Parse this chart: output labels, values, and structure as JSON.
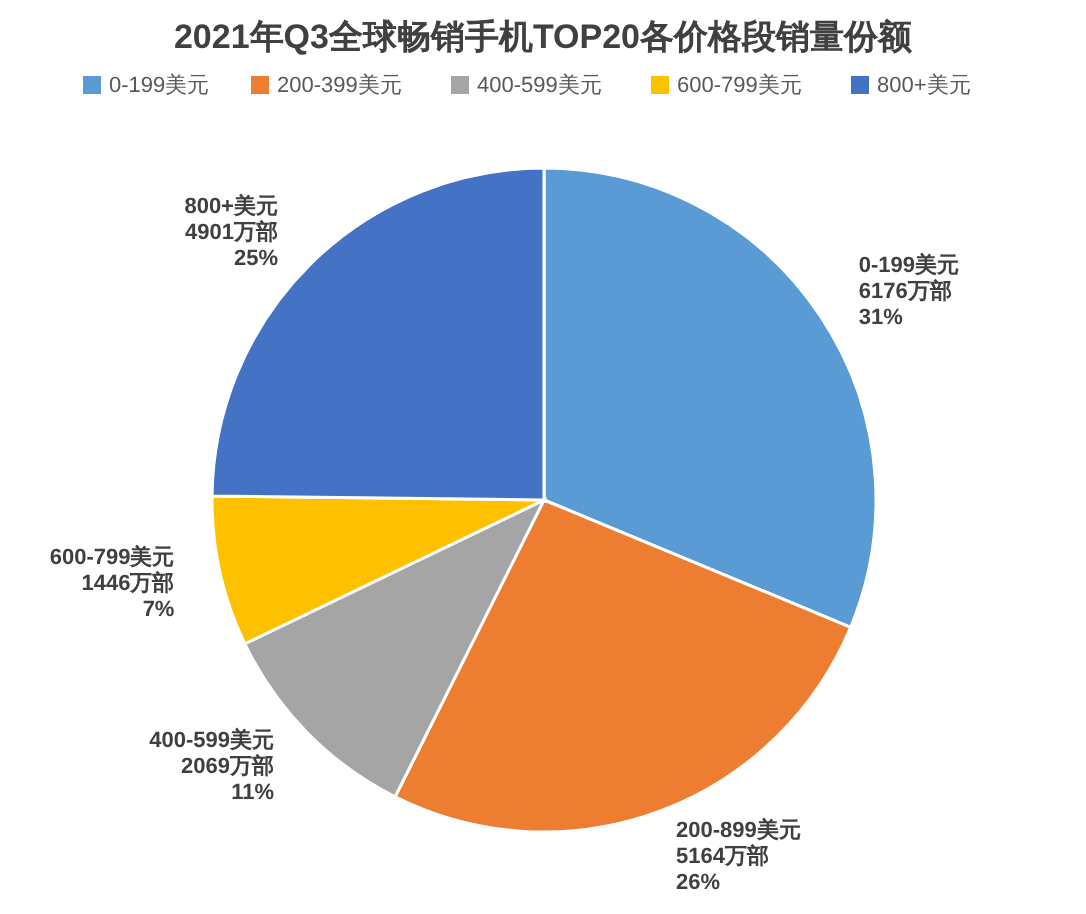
{
  "chart_data": {
    "type": "pie",
    "title": "2021年Q3全球畅销手机TOP20各价格段销量份额",
    "categories": [
      "0-199美元",
      "200-399美元",
      "400-599美元",
      "600-799美元",
      "800+美元"
    ],
    "values": [
      6176,
      5164,
      2069,
      1446,
      4901
    ],
    "colors": [
      "#5b9bd5",
      "#ed7d31",
      "#a5a5a5",
      "#ffc000",
      "#4472c4"
    ],
    "value_labels": [
      "0-199美元\n6176万部\n31%",
      "200-899美元\n5164万部\n26%",
      "400-599美元\n2069万部\n11%",
      "600-799美元\n1446万部\n7%",
      "800+美元\n4901万部\n25%"
    ],
    "legend": "top"
  }
}
